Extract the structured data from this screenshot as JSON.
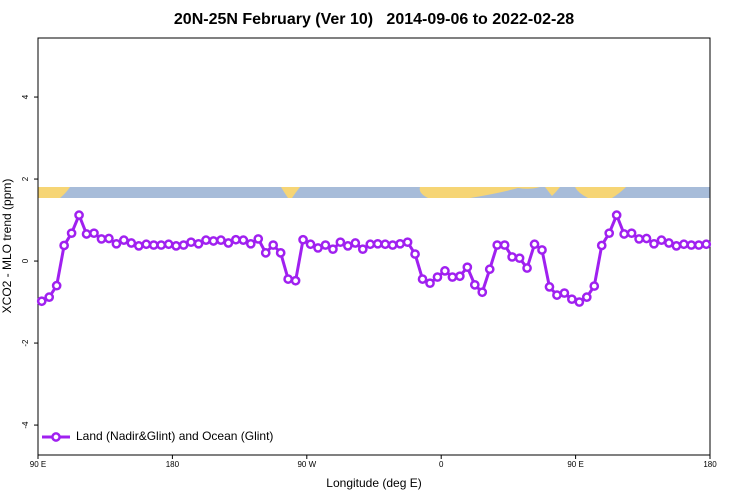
{
  "chart_data": {
    "type": "line",
    "title": "20N-25N February (Ver 10)   2014-09-06 to 2022-02-28",
    "xlabel": "Longitude (deg E)",
    "ylabel": "XCO2 - MLO trend (ppm)",
    "xlim": [
      90,
      540
    ],
    "ylim": [
      -4.73,
      5.44
    ],
    "xticks": [
      {
        "value": 90,
        "label": "90 E"
      },
      {
        "value": 180,
        "label": "180"
      },
      {
        "value": 270,
        "label": "90 W"
      },
      {
        "value": 360,
        "label": "0"
      },
      {
        "value": 450,
        "label": "90 E"
      },
      {
        "value": 540,
        "label": "180"
      }
    ],
    "yticks": [
      4,
      2,
      0,
      -2,
      -4
    ],
    "legend": "bottom-left",
    "x": [
      92.5,
      97.5,
      102.5,
      107.5,
      112.5,
      117.5,
      122.5,
      127.5,
      132.5,
      137.5,
      142.5,
      147.5,
      152.5,
      157.5,
      162.5,
      167.5,
      172.5,
      177.5,
      182.5,
      187.5,
      192.5,
      197.5,
      202.5,
      207.5,
      212.5,
      217.5,
      222.5,
      227.5,
      232.5,
      237.5,
      242.5,
      247.5,
      252.5,
      257.5,
      262.5,
      267.5,
      272.5,
      277.5,
      282.5,
      287.5,
      292.5,
      297.5,
      302.5,
      307.5,
      312.5,
      317.5,
      322.5,
      327.5,
      332.5,
      337.5,
      342.5,
      347.5,
      352.5,
      357.5,
      362.5,
      367.5,
      372.5,
      377.5,
      382.5,
      387.5,
      392.5,
      397.5,
      402.5,
      407.5,
      412.5,
      417.5,
      422.5,
      427.5,
      432.5,
      437.5,
      442.5,
      447.5,
      452.5,
      457.5,
      462.5,
      467.5,
      472.5,
      477.5,
      482.5,
      487.5,
      492.5,
      497.5,
      502.5,
      507.5,
      512.5,
      517.5,
      522.5,
      527.5,
      532.5,
      537.5
    ],
    "series": [
      {
        "name": "Land (Nadir&Glint) and Ocean (Glint)",
        "color": "#a020f0",
        "values": [
          -0.98,
          -0.88,
          -0.6,
          0.38,
          0.68,
          1.12,
          0.66,
          0.68,
          0.54,
          0.55,
          0.42,
          0.51,
          0.44,
          0.37,
          0.41,
          0.39,
          0.39,
          0.41,
          0.37,
          0.39,
          0.46,
          0.42,
          0.51,
          0.49,
          0.51,
          0.44,
          0.52,
          0.51,
          0.42,
          0.54,
          0.2,
          0.39,
          0.2,
          -0.44,
          -0.48,
          0.52,
          0.41,
          0.32,
          0.39,
          0.29,
          0.46,
          0.37,
          0.44,
          0.29,
          0.41,
          0.42,
          0.41,
          0.39,
          0.42,
          0.46,
          0.17,
          -0.44,
          -0.54,
          -0.39,
          -0.24,
          -0.39,
          -0.37,
          -0.15,
          -0.58,
          -0.76,
          -0.2,
          0.39,
          0.39,
          0.1,
          0.07,
          -0.17,
          0.41,
          0.27,
          -0.63,
          -0.83,
          -0.78,
          -0.93,
          -1.0,
          -0.88,
          -0.61,
          0.38,
          0.68,
          1.12,
          0.66,
          0.68,
          0.54,
          0.55,
          0.42,
          0.51,
          0.44,
          0.37,
          0.41,
          0.39,
          0.39,
          0.41
        ]
      }
    ]
  }
}
